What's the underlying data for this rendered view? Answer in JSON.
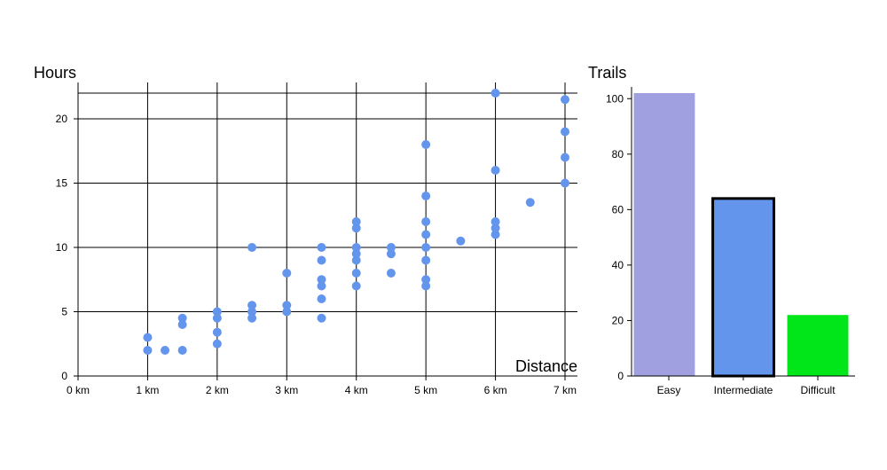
{
  "chart_data": [
    {
      "type": "scatter",
      "ylabel": "Hours",
      "xlabel": "Distance",
      "x_unit": "km",
      "xlim": [
        0,
        7
      ],
      "ylim": [
        0,
        22
      ],
      "x_ticks": [
        0,
        1,
        2,
        3,
        4,
        5,
        6,
        7
      ],
      "x_tick_labels": [
        "0 km",
        "1 km",
        "2 km",
        "3 km",
        "4 km",
        "5 km",
        "6 km",
        "7 km"
      ],
      "y_ticks": [
        0,
        5,
        10,
        15,
        20
      ],
      "y_tick_labels": [
        "0",
        "5",
        "10",
        "15",
        "20"
      ],
      "grid": true,
      "point_color": "#6495ED",
      "points": [
        {
          "x": 1,
          "y": 2
        },
        {
          "x": 1,
          "y": 3
        },
        {
          "x": 1.25,
          "y": 2
        },
        {
          "x": 1.5,
          "y": 2
        },
        {
          "x": 1.5,
          "y": 4
        },
        {
          "x": 1.5,
          "y": 4.5
        },
        {
          "x": 2,
          "y": 2.5
        },
        {
          "x": 2,
          "y": 3.4
        },
        {
          "x": 2,
          "y": 4.5
        },
        {
          "x": 2,
          "y": 5
        },
        {
          "x": 2.5,
          "y": 4.5
        },
        {
          "x": 2.5,
          "y": 5
        },
        {
          "x": 2.5,
          "y": 5.5
        },
        {
          "x": 2.5,
          "y": 10
        },
        {
          "x": 3,
          "y": 5
        },
        {
          "x": 3,
          "y": 5.5
        },
        {
          "x": 3,
          "y": 8
        },
        {
          "x": 3.5,
          "y": 4.5
        },
        {
          "x": 3.5,
          "y": 6
        },
        {
          "x": 3.5,
          "y": 7
        },
        {
          "x": 3.5,
          "y": 7.5
        },
        {
          "x": 3.5,
          "y": 9
        },
        {
          "x": 3.5,
          "y": 10
        },
        {
          "x": 4,
          "y": 7
        },
        {
          "x": 4,
          "y": 8
        },
        {
          "x": 4,
          "y": 9
        },
        {
          "x": 4,
          "y": 9.5
        },
        {
          "x": 4,
          "y": 10
        },
        {
          "x": 4,
          "y": 11.5
        },
        {
          "x": 4,
          "y": 12
        },
        {
          "x": 4.5,
          "y": 8
        },
        {
          "x": 4.5,
          "y": 9.5
        },
        {
          "x": 4.5,
          "y": 10
        },
        {
          "x": 5,
          "y": 7
        },
        {
          "x": 5,
          "y": 7.5
        },
        {
          "x": 5,
          "y": 9
        },
        {
          "x": 5,
          "y": 10
        },
        {
          "x": 5,
          "y": 11
        },
        {
          "x": 5,
          "y": 12
        },
        {
          "x": 5,
          "y": 14
        },
        {
          "x": 5,
          "y": 18
        },
        {
          "x": 5.5,
          "y": 10.5
        },
        {
          "x": 6,
          "y": 11
        },
        {
          "x": 6,
          "y": 11.5
        },
        {
          "x": 6,
          "y": 12
        },
        {
          "x": 6,
          "y": 16
        },
        {
          "x": 6,
          "y": 22
        },
        {
          "x": 6.5,
          "y": 13.5
        },
        {
          "x": 7,
          "y": 15
        },
        {
          "x": 7,
          "y": 17
        },
        {
          "x": 7,
          "y": 19
        },
        {
          "x": 7,
          "y": 21.5
        }
      ]
    },
    {
      "type": "bar",
      "ylabel": "Trails",
      "categories": [
        "Easy",
        "Intermediate",
        "Difficult"
      ],
      "values": [
        102,
        64,
        22
      ],
      "colors": [
        "#A0A0E0",
        "#6495ED",
        "#00E619"
      ],
      "highlighted": "Intermediate",
      "ylim": [
        0,
        102
      ],
      "y_ticks": [
        0,
        20,
        40,
        60,
        80,
        100
      ],
      "y_tick_labels": [
        "0",
        "20",
        "40",
        "60",
        "80",
        "100"
      ]
    }
  ]
}
